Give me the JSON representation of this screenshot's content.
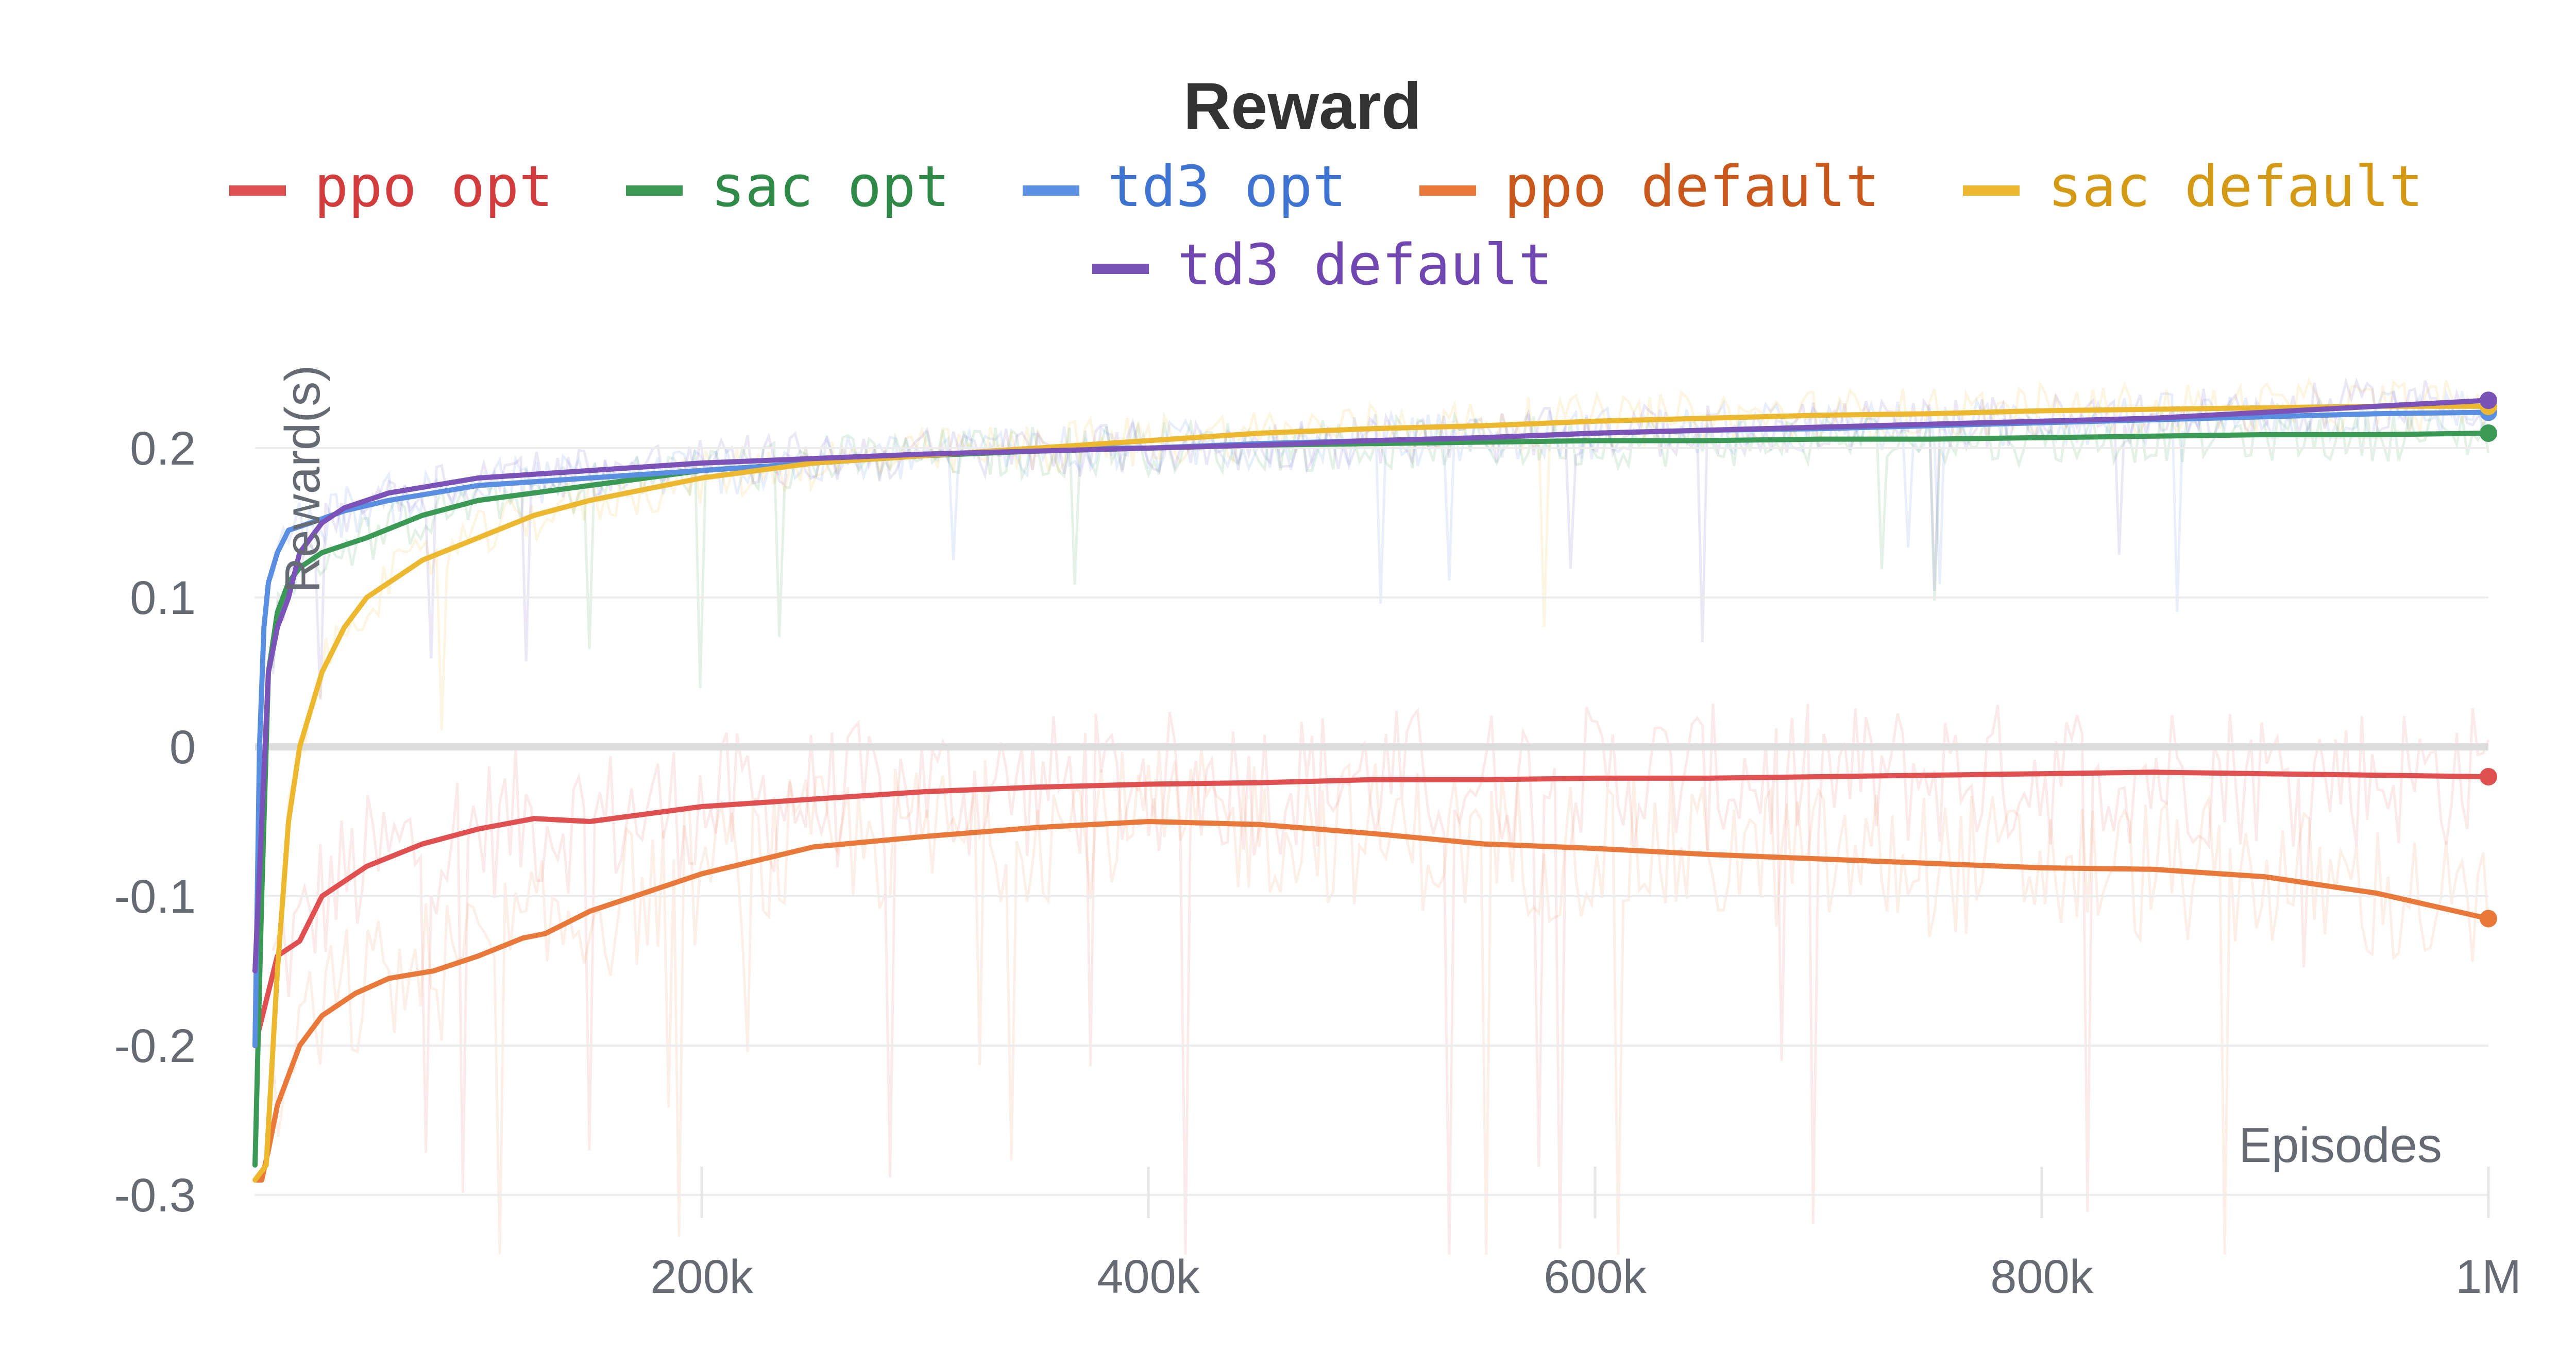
{
  "chart_data": {
    "type": "line",
    "title": "Reward",
    "xlabel": "Episodes",
    "ylabel": "Reward(s)",
    "xlim": [
      0,
      1000000
    ],
    "ylim": [
      -0.32,
      0.27
    ],
    "x_ticks": [
      200000,
      400000,
      600000,
      800000,
      1000000
    ],
    "x_tick_labels": [
      "200k",
      "400k",
      "600k",
      "800k",
      "1M"
    ],
    "y_ticks": [
      -0.3,
      -0.2,
      -0.1,
      0,
      0.1,
      0.2
    ],
    "y_tick_labels": [
      "-0.3",
      "-0.2",
      "-0.1",
      "0",
      "0.1",
      "0.2"
    ],
    "grid": true,
    "legend_position": "top",
    "series": [
      {
        "name": "ppo opt",
        "color": "#e05050",
        "text_color": "#d23c3c",
        "x": [
          0,
          5000,
          10000,
          20000,
          30000,
          50000,
          75000,
          100000,
          125000,
          150000,
          200000,
          250000,
          300000,
          350000,
          400000,
          450000,
          500000,
          550000,
          600000,
          650000,
          700000,
          750000,
          800000,
          850000,
          900000,
          950000,
          1000000
        ],
        "y": [
          -0.2,
          -0.17,
          -0.14,
          -0.13,
          -0.1,
          -0.08,
          -0.065,
          -0.055,
          -0.048,
          -0.05,
          -0.04,
          -0.035,
          -0.03,
          -0.027,
          -0.025,
          -0.024,
          -0.022,
          -0.022,
          -0.021,
          -0.021,
          -0.02,
          -0.019,
          -0.018,
          -0.017,
          -0.018,
          -0.019,
          -0.02
        ]
      },
      {
        "name": "sac opt",
        "color": "#3a9a55",
        "text_color": "#2f8a47",
        "x": [
          0,
          3000,
          6000,
          10000,
          15000,
          20000,
          30000,
          50000,
          75000,
          100000,
          150000,
          200000,
          250000,
          300000,
          350000,
          400000,
          450000,
          500000,
          550000,
          600000,
          650000,
          700000,
          750000,
          800000,
          850000,
          900000,
          950000,
          1000000
        ],
        "y": [
          -0.28,
          -0.1,
          0.05,
          0.09,
          0.11,
          0.12,
          0.13,
          0.14,
          0.155,
          0.165,
          0.175,
          0.185,
          0.19,
          0.195,
          0.198,
          0.2,
          0.202,
          0.203,
          0.204,
          0.205,
          0.205,
          0.206,
          0.206,
          0.207,
          0.208,
          0.209,
          0.209,
          0.21
        ]
      },
      {
        "name": "td3 opt",
        "color": "#5a8ee0",
        "text_color": "#3f73d1",
        "x": [
          0,
          2000,
          4000,
          6000,
          10000,
          15000,
          25000,
          40000,
          60000,
          80000,
          100000,
          150000,
          200000,
          250000,
          300000,
          350000,
          400000,
          450000,
          500000,
          550000,
          600000,
          650000,
          700000,
          750000,
          800000,
          850000,
          900000,
          950000,
          1000000
        ],
        "y": [
          -0.2,
          0.0,
          0.08,
          0.11,
          0.13,
          0.145,
          0.15,
          0.158,
          0.165,
          0.17,
          0.175,
          0.18,
          0.185,
          0.19,
          0.195,
          0.2,
          0.2,
          0.203,
          0.205,
          0.207,
          0.21,
          0.212,
          0.213,
          0.215,
          0.217,
          0.219,
          0.221,
          0.223,
          0.224
        ]
      },
      {
        "name": "ppo default",
        "color": "#e8793a",
        "text_color": "#c8581c",
        "x": [
          0,
          3000,
          6000,
          10000,
          15000,
          20000,
          30000,
          45000,
          60000,
          80000,
          100000,
          120000,
          130000,
          150000,
          200000,
          250000,
          300000,
          350000,
          400000,
          450000,
          500000,
          550000,
          600000,
          650000,
          700000,
          750000,
          800000,
          850000,
          900000,
          950000,
          1000000
        ],
        "y": [
          -0.29,
          -0.29,
          -0.27,
          -0.24,
          -0.22,
          -0.2,
          -0.18,
          -0.165,
          -0.155,
          -0.15,
          -0.14,
          -0.128,
          -0.125,
          -0.11,
          -0.085,
          -0.067,
          -0.06,
          -0.054,
          -0.05,
          -0.052,
          -0.058,
          -0.065,
          -0.068,
          -0.072,
          -0.075,
          -0.078,
          -0.081,
          -0.082,
          -0.087,
          -0.098,
          -0.115
        ]
      },
      {
        "name": "sac default",
        "color": "#ecb830",
        "text_color": "#d49a16",
        "x": [
          0,
          5000,
          10000,
          15000,
          20000,
          30000,
          40000,
          50000,
          60000,
          75000,
          100000,
          125000,
          150000,
          200000,
          250000,
          300000,
          350000,
          400000,
          450000,
          500000,
          550000,
          600000,
          650000,
          700000,
          750000,
          800000,
          850000,
          900000,
          950000,
          1000000
        ],
        "y": [
          -0.29,
          -0.28,
          -0.15,
          -0.05,
          0.0,
          0.05,
          0.08,
          0.1,
          0.11,
          0.125,
          0.14,
          0.155,
          0.165,
          0.18,
          0.19,
          0.195,
          0.2,
          0.205,
          0.21,
          0.213,
          0.215,
          0.218,
          0.22,
          0.222,
          0.223,
          0.225,
          0.226,
          0.227,
          0.228,
          0.228
        ]
      },
      {
        "name": "td3 default",
        "color": "#7a52b8",
        "text_color": "#7046b0",
        "x": [
          0,
          3000,
          6000,
          10000,
          15000,
          20000,
          30000,
          40000,
          60000,
          80000,
          100000,
          150000,
          200000,
          250000,
          300000,
          350000,
          400000,
          450000,
          500000,
          550000,
          600000,
          650000,
          700000,
          750000,
          800000,
          850000,
          900000,
          950000,
          1000000
        ],
        "y": [
          -0.15,
          -0.05,
          0.05,
          0.08,
          0.1,
          0.13,
          0.15,
          0.16,
          0.17,
          0.175,
          0.18,
          0.185,
          0.19,
          0.193,
          0.196,
          0.198,
          0.2,
          0.202,
          0.205,
          0.207,
          0.21,
          0.212,
          0.214,
          0.216,
          0.218,
          0.22,
          0.224,
          0.228,
          0.232
        ]
      }
    ]
  }
}
